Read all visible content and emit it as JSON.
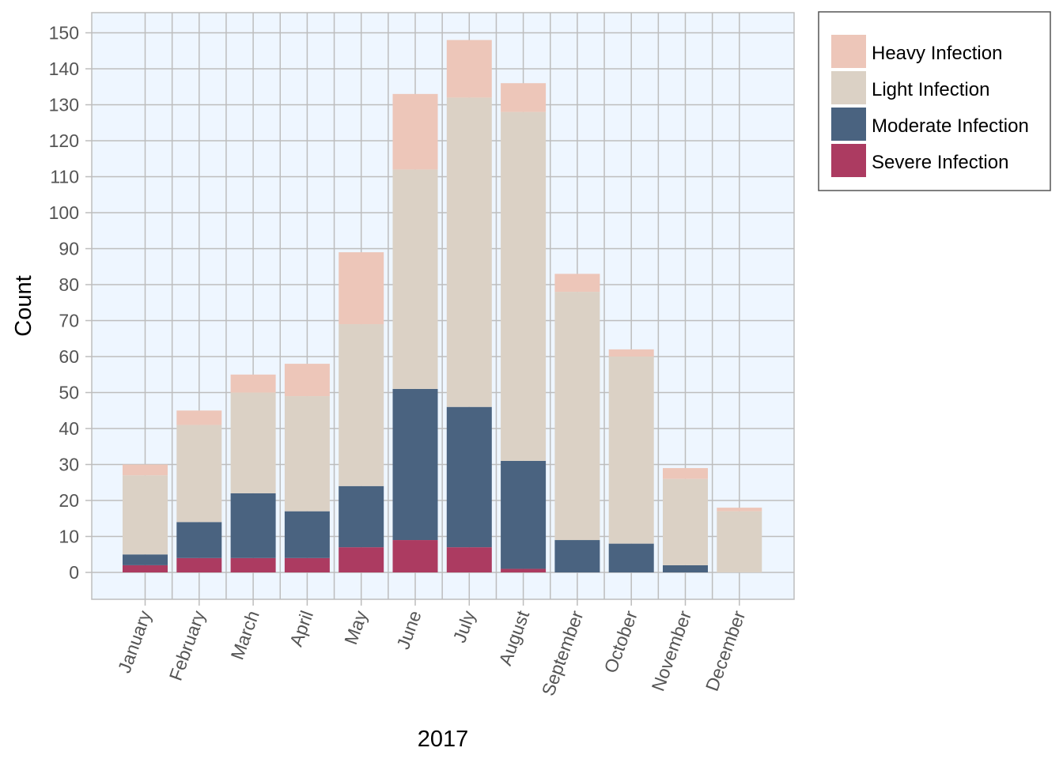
{
  "chart_data": {
    "type": "bar",
    "stacked": true,
    "xlabel": "2017",
    "ylabel": "Count",
    "ylim": [
      0,
      150
    ],
    "yticks": [
      0,
      10,
      20,
      30,
      40,
      50,
      60,
      70,
      80,
      90,
      100,
      110,
      120,
      130,
      140,
      150
    ],
    "grid": true,
    "legend_position": "right",
    "background": "#eef6ff",
    "grid_color": "#bdbdbd",
    "categories": [
      "January",
      "February",
      "March",
      "April",
      "May",
      "June",
      "July",
      "August",
      "September",
      "October",
      "November",
      "December"
    ],
    "series": [
      {
        "name": "Severe Infection",
        "color": "#ac3b61",
        "values": [
          2,
          4,
          4,
          4,
          7,
          9,
          7,
          1,
          0,
          0,
          0,
          0
        ]
      },
      {
        "name": "Moderate Infection",
        "color": "#4a6380",
        "values": [
          3,
          10,
          18,
          13,
          17,
          42,
          39,
          30,
          9,
          8,
          2,
          0
        ]
      },
      {
        "name": "Light Infection",
        "color": "#dbd1c5",
        "values": [
          22,
          27,
          28,
          32,
          45,
          61,
          86,
          97,
          69,
          52,
          24,
          17
        ]
      },
      {
        "name": "Heavy Infection",
        "color": "#edc6b9",
        "values": [
          3,
          4,
          5,
          9,
          20,
          21,
          16,
          8,
          5,
          2,
          3,
          1
        ]
      }
    ],
    "legend_order": [
      "Heavy Infection",
      "Light Infection",
      "Moderate Infection",
      "Severe Infection"
    ]
  }
}
